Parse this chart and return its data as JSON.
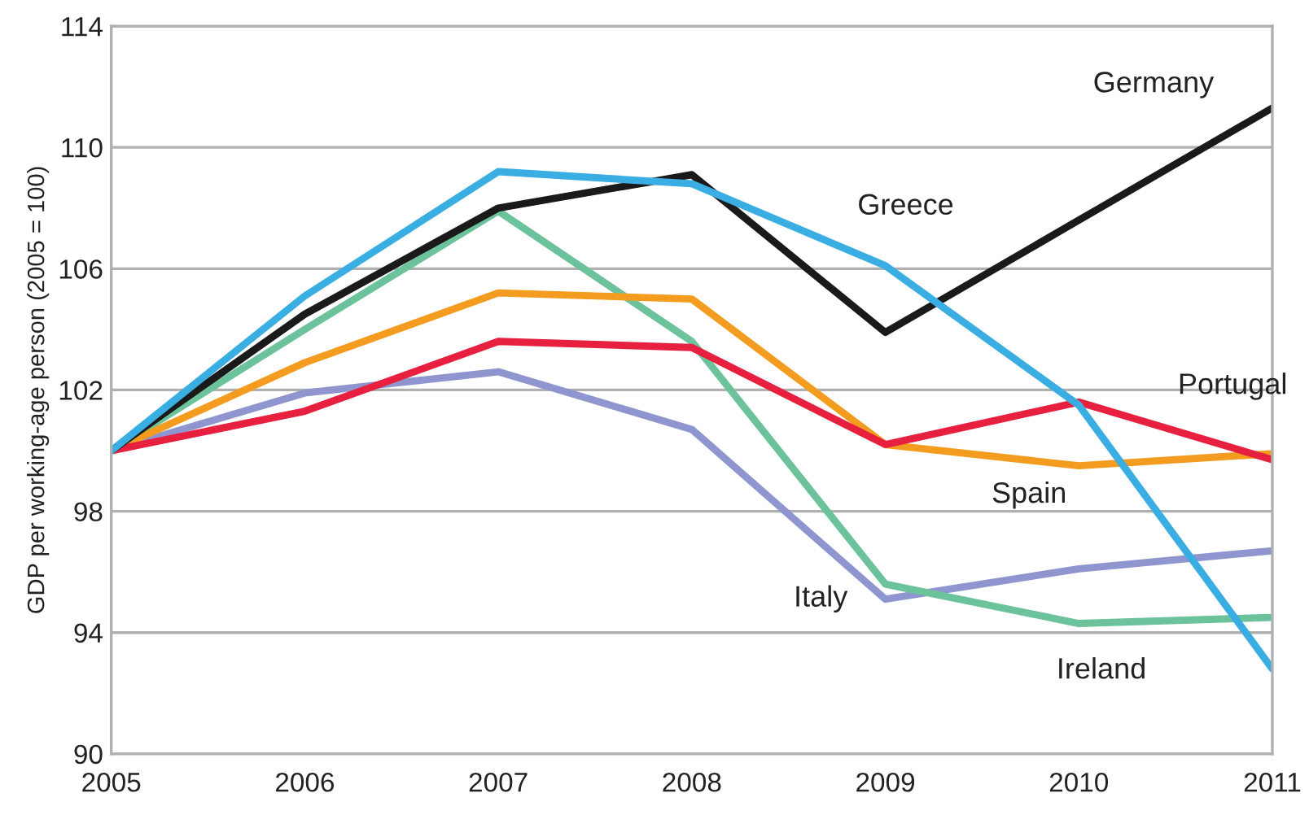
{
  "chart_data": {
    "type": "line",
    "ylabel": "GDP per working-age person (2005 = 100)",
    "x": [
      2005,
      2006,
      2007,
      2008,
      2009,
      2010,
      2011
    ],
    "xlim": [
      2005,
      2011
    ],
    "xticks": [
      2005,
      2006,
      2007,
      2008,
      2009,
      2010,
      2011
    ],
    "ylim": [
      90,
      114
    ],
    "yticks": [
      90,
      94,
      98,
      102,
      106,
      110,
      114
    ],
    "grid": "y",
    "marker": "none",
    "line_style": "solid",
    "series": [
      {
        "name": "Italy",
        "color": "#8f95cf",
        "values": [
          100,
          101.9,
          102.6,
          100.7,
          95.1,
          96.1,
          96.7
        ]
      },
      {
        "name": "Ireland",
        "color": "#6cc29a",
        "values": [
          100,
          104.0,
          107.9,
          103.6,
          95.6,
          94.3,
          94.5
        ]
      },
      {
        "name": "Spain",
        "color": "#f39c1f",
        "values": [
          100,
          102.9,
          105.2,
          105.0,
          100.2,
          99.5,
          99.9
        ]
      },
      {
        "name": "Portugal",
        "color": "#e8203f",
        "values": [
          100,
          101.3,
          103.6,
          103.4,
          100.2,
          101.6,
          99.7
        ]
      },
      {
        "name": "Germany",
        "color": "#1a1a1a",
        "values": [
          100,
          104.5,
          108.0,
          109.1,
          103.9,
          107.6,
          111.3
        ]
      },
      {
        "name": "Greece",
        "color": "#3aaee2",
        "values": [
          100,
          105.1,
          109.2,
          108.8,
          106.1,
          101.5,
          92.8
        ]
      }
    ]
  }
}
